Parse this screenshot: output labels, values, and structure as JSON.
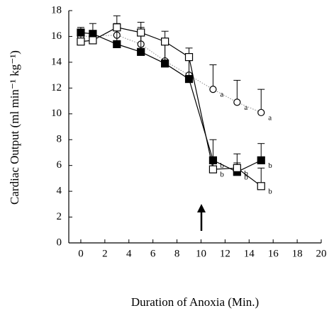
{
  "chart_data": {
    "type": "line",
    "x_label": "Duration of Anoxia (Min.)",
    "y_label": "Cardiac Output (ml min⁻¹ kg⁻¹)",
    "xlim": [
      -1,
      20
    ],
    "xticks": [
      0,
      2,
      4,
      6,
      8,
      10,
      12,
      14,
      16,
      18,
      20
    ],
    "ylim": [
      0,
      18
    ],
    "yticks": [
      0,
      2,
      4,
      6,
      8,
      10,
      12,
      14,
      16,
      18
    ],
    "series": [
      {
        "marker": "circle-open",
        "color": "#000000",
        "line_color": "#888888",
        "dotted": true,
        "x": [
          0,
          3,
          5,
          7,
          9,
          11,
          13,
          15
        ],
        "values": [
          16.0,
          16.1,
          15.4,
          14.1,
          13.0,
          11.9,
          10.9,
          10.1
        ],
        "errors": [
          0.4,
          0.9,
          1.3,
          1.6,
          1.6,
          1.9,
          1.7,
          1.8
        ],
        "point_labels": [
          null,
          null,
          null,
          null,
          null,
          "a",
          "a",
          "a"
        ]
      },
      {
        "marker": "square-filled",
        "color": "#000000",
        "line_color": "#000000",
        "dotted": false,
        "x": [
          0,
          1,
          3,
          5,
          7,
          9,
          11,
          13,
          15
        ],
        "values": [
          16.3,
          16.2,
          15.4,
          14.8,
          13.9,
          12.7,
          6.4,
          5.5,
          6.4
        ],
        "errors": [
          0.4,
          0.8,
          1.2,
          1.5,
          1.6,
          1.7,
          1.6,
          0.7,
          1.3
        ],
        "point_labels": [
          null,
          null,
          null,
          null,
          null,
          null,
          "b",
          "b",
          "b"
        ]
      },
      {
        "marker": "square-open",
        "color": "#000000",
        "line_color": "#000000",
        "dotted": false,
        "x": [
          0,
          1,
          3,
          5,
          7,
          9,
          11,
          13,
          15
        ],
        "values": [
          15.6,
          15.7,
          16.7,
          16.3,
          15.6,
          14.4,
          5.7,
          5.8,
          4.4
        ],
        "errors": [
          0.5,
          0.5,
          0.9,
          0.8,
          0.8,
          0.7,
          0.6,
          1.1,
          1.4
        ],
        "point_labels": [
          null,
          null,
          null,
          null,
          null,
          null,
          "b",
          "b",
          "b"
        ]
      }
    ]
  }
}
